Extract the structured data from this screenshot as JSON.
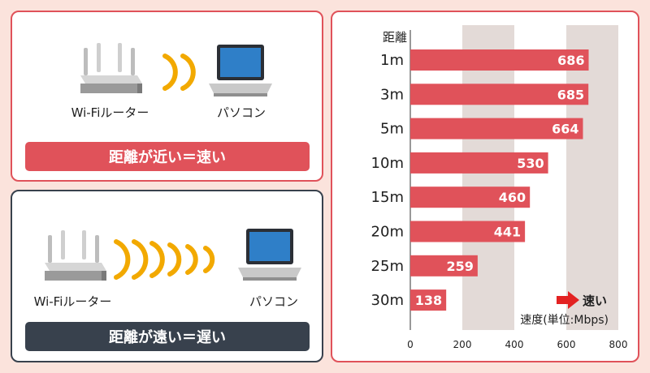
{
  "near_panel": {
    "router_label": "Wi-Fiルーター",
    "pc_label": "パソコン",
    "banner": "距離が近い＝速い"
  },
  "far_panel": {
    "router_label": "Wi-Fiルーター",
    "pc_label": "パソコン",
    "banner": "距離が遠い＝遅い"
  },
  "colors": {
    "accent_red": "#e0525a",
    "dark_navy": "#38414d",
    "signal_yellow": "#f2a900",
    "background_pink": "#fbe3dc"
  },
  "chart_data": {
    "type": "bar",
    "orientation": "horizontal",
    "category_axis_title": "距離",
    "categories": [
      "1m",
      "3m",
      "5m",
      "10m",
      "15m",
      "20m",
      "25m",
      "30m"
    ],
    "values": [
      686,
      685,
      664,
      530,
      460,
      441,
      259,
      138
    ],
    "xlim": [
      0,
      800
    ],
    "xticks": [
      0,
      200,
      400,
      600,
      800
    ],
    "xlabel": "速度(単位:Mbps)",
    "annotation": "速い",
    "bar_color": "#e0525a",
    "data_labels": true,
    "grid": "alternating vertical bands"
  }
}
